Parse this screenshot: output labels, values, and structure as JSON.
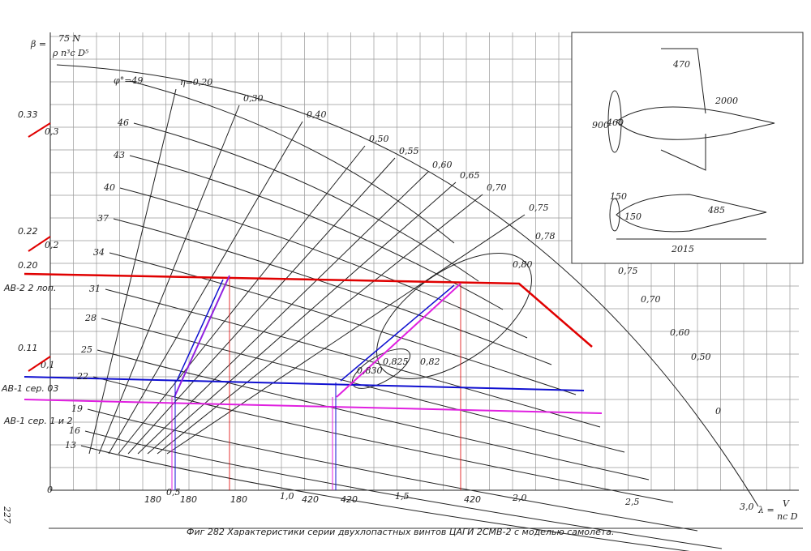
{
  "axis": {
    "beta_label": "β =",
    "beta_numerator": "75 N",
    "beta_denominator": "ρ n³c D⁵",
    "lambda_label": "λ =",
    "lambda_numerator": "V",
    "lambda_denominator": "nc D",
    "x_ticks": [
      "0",
      "0,5",
      "1,0",
      "1,5",
      "2,0",
      "2,5",
      "3,0"
    ],
    "y_ticks_struck": [
      "0,3",
      "0,2",
      "0,1"
    ]
  },
  "pitch_labels": [
    "φ°=49",
    "46",
    "43",
    "40",
    "37",
    "34",
    "31",
    "28",
    "25",
    "22",
    "19",
    "16",
    "13"
  ],
  "efficiency_labels": [
    "η=0,20",
    "0,30",
    "0,40",
    "0,50",
    "0,55",
    "0,60",
    "0,65",
    "0,70",
    "0,75",
    "0,78",
    "0,80",
    "0,82",
    "0,825",
    "0,830",
    "0,75",
    "0,70",
    "0,60",
    "0,50",
    "0"
  ],
  "annotations": {
    "beta_values": [
      "0.33",
      "0.22",
      "0.20",
      "0.11"
    ],
    "propellers": [
      "АВ-2 2 лоп.",
      "АВ-1 сер. 03",
      "АВ-1 сер. 1 и 2"
    ],
    "speeds": [
      "180",
      "180",
      "180",
      "420",
      "420",
      "420"
    ]
  },
  "inset": {
    "dimensions": [
      "470",
      "2000",
      "900",
      "460",
      "150",
      "150",
      "485",
      "2015"
    ]
  },
  "caption": "Фиг 282 Характеристики серии двухлопастных винтов ЦАГИ 2СМВ-2 с моделью самолета.",
  "page_number": "227"
}
